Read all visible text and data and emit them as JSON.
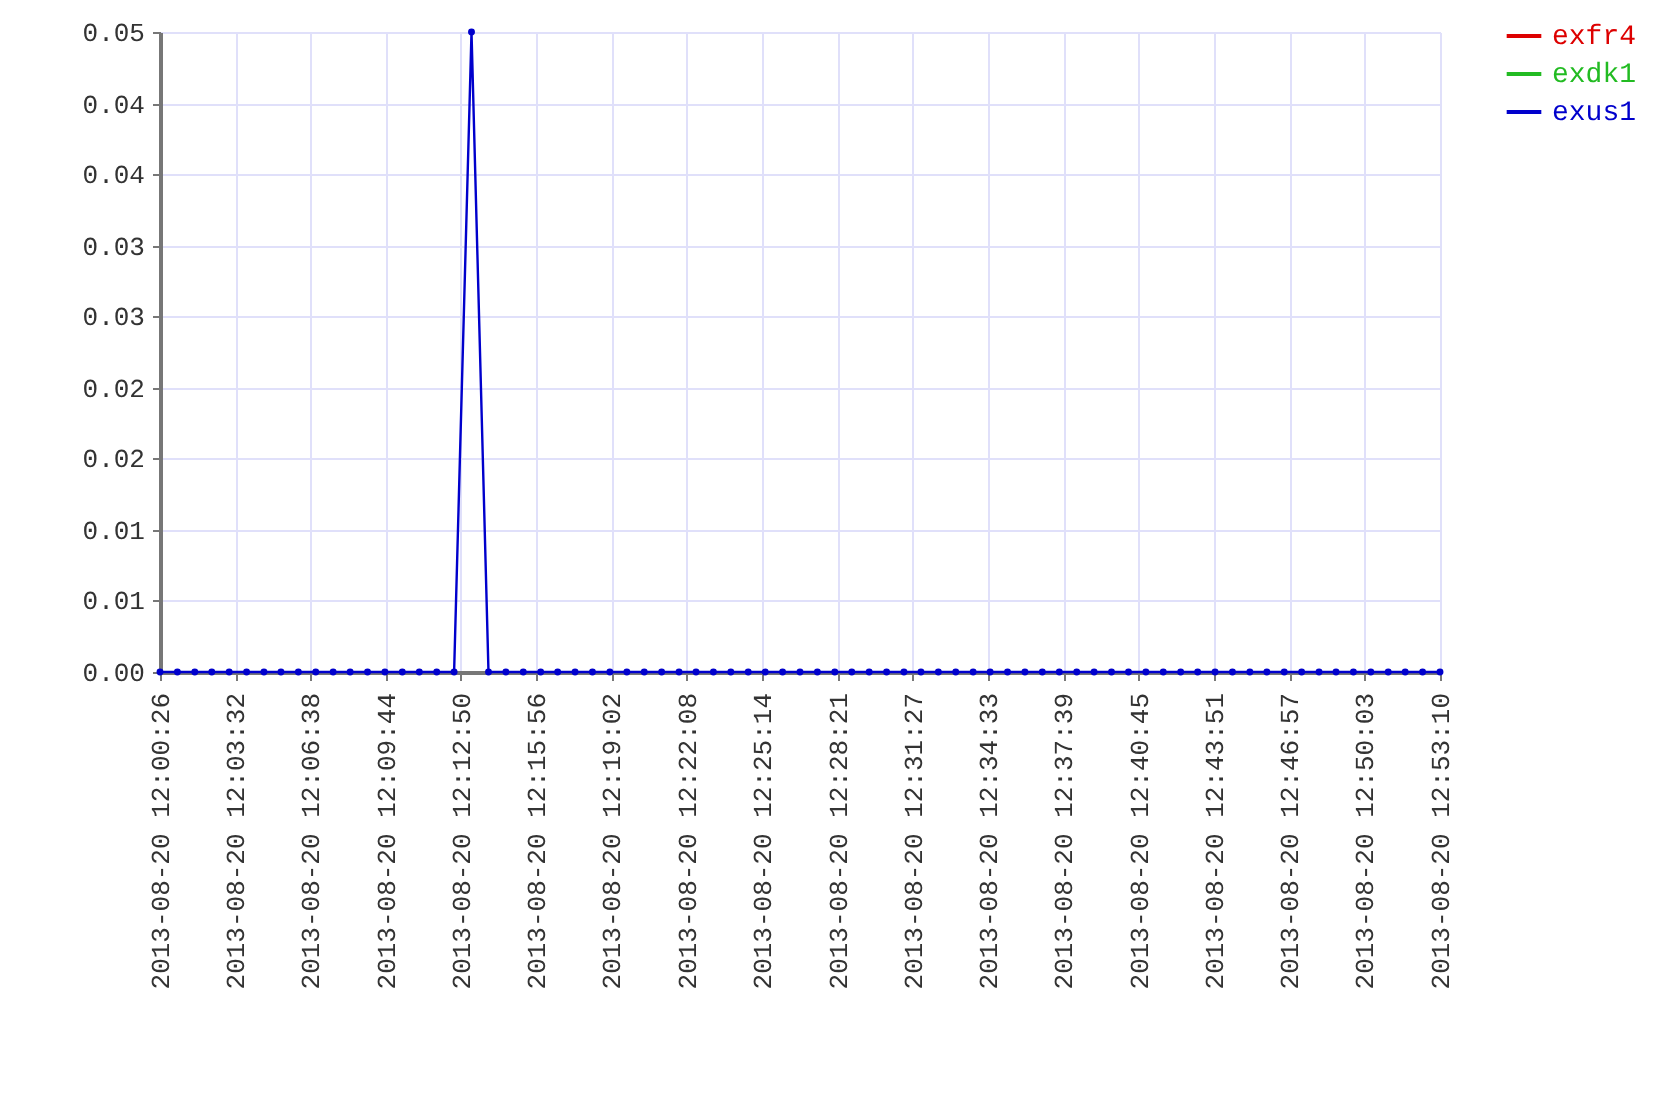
{
  "chart_data": {
    "type": "line",
    "x": [
      "2013-08-20T12:00:26",
      "2013-08-20T12:01:09",
      "2013-08-20T12:01:52",
      "2013-08-20T12:02:34",
      "2013-08-20T12:03:17",
      "2013-08-20T12:04:00",
      "2013-08-20T12:04:43",
      "2013-08-20T12:05:25",
      "2013-08-20T12:06:08",
      "2013-08-20T12:06:51",
      "2013-08-20T12:07:34",
      "2013-08-20T12:08:16",
      "2013-08-20T12:08:59",
      "2013-08-20T12:09:42",
      "2013-08-20T12:10:25",
      "2013-08-20T12:11:07",
      "2013-08-20T12:11:50",
      "2013-08-20T12:12:33",
      "2013-08-20T12:13:16",
      "2013-08-20T12:13:58",
      "2013-08-20T12:14:41",
      "2013-08-20T12:15:24",
      "2013-08-20T12:16:07",
      "2013-08-20T12:16:49",
      "2013-08-20T12:17:32",
      "2013-08-20T12:18:15",
      "2013-08-20T12:18:58",
      "2013-08-20T12:19:40",
      "2013-08-20T12:20:23",
      "2013-08-20T12:21:06",
      "2013-08-20T12:21:49",
      "2013-08-20T12:22:31",
      "2013-08-20T12:23:14",
      "2013-08-20T12:23:57",
      "2013-08-20T12:24:40",
      "2013-08-20T12:25:22",
      "2013-08-20T12:26:05",
      "2013-08-20T12:26:48",
      "2013-08-20T12:27:31",
      "2013-08-20T12:28:14",
      "2013-08-20T12:28:56",
      "2013-08-20T12:29:39",
      "2013-08-20T12:30:22",
      "2013-08-20T12:31:05",
      "2013-08-20T12:31:47",
      "2013-08-20T12:32:30",
      "2013-08-20T12:33:13",
      "2013-08-20T12:33:56",
      "2013-08-20T12:34:38",
      "2013-08-20T12:35:21",
      "2013-08-20T12:36:04",
      "2013-08-20T12:36:47",
      "2013-08-20T12:37:29",
      "2013-08-20T12:38:12",
      "2013-08-20T12:38:55",
      "2013-08-20T12:39:38",
      "2013-08-20T12:40:20",
      "2013-08-20T12:41:03",
      "2013-08-20T12:41:46",
      "2013-08-20T12:42:29",
      "2013-08-20T12:43:11",
      "2013-08-20T12:43:54",
      "2013-08-20T12:44:37",
      "2013-08-20T12:45:20",
      "2013-08-20T12:46:02",
      "2013-08-20T12:46:45",
      "2013-08-20T12:47:28",
      "2013-08-20T12:48:11",
      "2013-08-20T12:48:53",
      "2013-08-20T12:49:36",
      "2013-08-20T12:50:19",
      "2013-08-20T12:51:02",
      "2013-08-20T12:51:44",
      "2013-08-20T12:52:27",
      "2013-08-20T12:53:10"
    ],
    "series": [
      {
        "name": "exfr4",
        "color": "#dd0000",
        "values": [
          null,
          null,
          null,
          null,
          null,
          null,
          null,
          null,
          null,
          null,
          null,
          null,
          null,
          null,
          null,
          null,
          null,
          null,
          null,
          null,
          null,
          null,
          null,
          null,
          null,
          null,
          null,
          null,
          null,
          null,
          null,
          null,
          null,
          null,
          null,
          null,
          null,
          null,
          null,
          null,
          null,
          null,
          null,
          null,
          null,
          null,
          null,
          null,
          null,
          null,
          null,
          null,
          null,
          null,
          null,
          null,
          null,
          null,
          null,
          null,
          null,
          null,
          null,
          null,
          null,
          null,
          null,
          null,
          null,
          null,
          null,
          null,
          null,
          null,
          null
        ]
      },
      {
        "name": "exdk1",
        "color": "#22bb22",
        "values": [
          null,
          null,
          null,
          null,
          null,
          null,
          null,
          null,
          null,
          null,
          null,
          null,
          null,
          null,
          null,
          null,
          null,
          null,
          null,
          null,
          null,
          null,
          null,
          null,
          null,
          null,
          null,
          null,
          null,
          null,
          null,
          null,
          null,
          null,
          null,
          null,
          null,
          null,
          null,
          null,
          null,
          null,
          null,
          null,
          null,
          null,
          null,
          null,
          null,
          null,
          null,
          null,
          null,
          null,
          null,
          null,
          null,
          null,
          null,
          null,
          null,
          null,
          null,
          null,
          null,
          null,
          null,
          null,
          null,
          null,
          null,
          null,
          null,
          null,
          null
        ]
      },
      {
        "name": "exus1",
        "color": "#0000cc",
        "values": [
          0,
          0,
          0,
          0,
          0,
          0,
          0,
          0,
          0,
          0,
          0,
          0,
          0,
          0,
          0,
          0,
          0,
          0,
          0.05,
          0,
          0,
          0,
          0,
          0,
          0,
          0,
          0,
          0,
          0,
          0,
          0,
          0,
          0,
          0,
          0,
          0,
          0,
          0,
          0,
          0,
          0,
          0,
          0,
          0,
          0,
          0,
          0,
          0,
          0,
          0,
          0,
          0,
          0,
          0,
          0,
          0,
          0,
          0,
          0,
          0,
          0,
          0,
          0,
          0,
          0,
          0,
          0,
          0,
          0,
          0,
          0,
          0,
          0,
          0,
          0
        ]
      }
    ],
    "xlim": [
      "2013-08-20T12:00:26",
      "2013-08-20T12:53:10"
    ],
    "xticks": [
      {
        "value": "2013-08-20T12:00:26",
        "label": "2013-08-20 12:00:26"
      },
      {
        "value": "2013-08-20T12:03:32",
        "label": "2013-08-20 12:03:32"
      },
      {
        "value": "2013-08-20T12:06:38",
        "label": "2013-08-20 12:06:38"
      },
      {
        "value": "2013-08-20T12:09:44",
        "label": "2013-08-20 12:09:44"
      },
      {
        "value": "2013-08-20T12:12:50",
        "label": "2013-08-20 12:12:50"
      },
      {
        "value": "2013-08-20T12:15:56",
        "label": "2013-08-20 12:15:56"
      },
      {
        "value": "2013-08-20T12:19:02",
        "label": "2013-08-20 12:19:02"
      },
      {
        "value": "2013-08-20T12:22:08",
        "label": "2013-08-20 12:22:08"
      },
      {
        "value": "2013-08-20T12:25:14",
        "label": "2013-08-20 12:25:14"
      },
      {
        "value": "2013-08-20T12:28:21",
        "label": "2013-08-20 12:28:21"
      },
      {
        "value": "2013-08-20T12:31:27",
        "label": "2013-08-20 12:31:27"
      },
      {
        "value": "2013-08-20T12:34:33",
        "label": "2013-08-20 12:34:33"
      },
      {
        "value": "2013-08-20T12:37:39",
        "label": "2013-08-20 12:37:39"
      },
      {
        "value": "2013-08-20T12:40:45",
        "label": "2013-08-20 12:40:45"
      },
      {
        "value": "2013-08-20T12:43:51",
        "label": "2013-08-20 12:43:51"
      },
      {
        "value": "2013-08-20T12:46:57",
        "label": "2013-08-20 12:46:57"
      },
      {
        "value": "2013-08-20T12:50:03",
        "label": "2013-08-20 12:50:03"
      },
      {
        "value": "2013-08-20T12:53:10",
        "label": "2013-08-20 12:53:10"
      }
    ],
    "ylim": [
      0,
      0.05
    ],
    "yticks": [
      {
        "value": 0,
        "label": "0.00"
      },
      {
        "value": 0.0056,
        "label": "0.01"
      },
      {
        "value": 0.0111,
        "label": "0.01"
      },
      {
        "value": 0.0167,
        "label": "0.02"
      },
      {
        "value": 0.0222,
        "label": "0.02"
      },
      {
        "value": 0.0278,
        "label": "0.03"
      },
      {
        "value": 0.0333,
        "label": "0.03"
      },
      {
        "value": 0.0389,
        "label": "0.04"
      },
      {
        "value": 0.0444,
        "label": "0.04"
      },
      {
        "value": 0.05,
        "label": "0.05"
      }
    ],
    "grid": true,
    "legend": "top right",
    "marker": "circle",
    "line_style": "solid"
  }
}
